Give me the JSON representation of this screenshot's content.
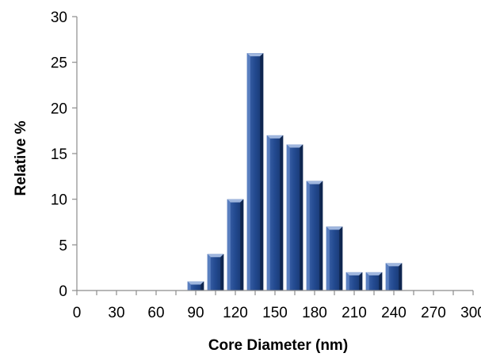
{
  "chart_data": {
    "type": "bar",
    "title": "",
    "xlabel": "Core Diameter (nm)",
    "ylabel": "Relative %",
    "xlim": [
      0,
      300
    ],
    "ylim": [
      0,
      30
    ],
    "x_ticks": [
      "0",
      "30",
      "60",
      "90",
      "120",
      "150",
      "180",
      "210",
      "240",
      "270",
      "300"
    ],
    "y_ticks": [
      "0",
      "5",
      "10",
      "15",
      "20",
      "25",
      "30"
    ],
    "bin_width": 15,
    "grid": false,
    "legend": "none",
    "bar_color": "#1f3f7a",
    "bars": [
      {
        "x": 90,
        "value": 1
      },
      {
        "x": 105,
        "value": 4
      },
      {
        "x": 120,
        "value": 10
      },
      {
        "x": 135,
        "value": 26
      },
      {
        "x": 150,
        "value": 17
      },
      {
        "x": 165,
        "value": 16
      },
      {
        "x": 180,
        "value": 12
      },
      {
        "x": 195,
        "value": 7
      },
      {
        "x": 210,
        "value": 2
      },
      {
        "x": 225,
        "value": 2
      },
      {
        "x": 240,
        "value": 3
      }
    ]
  }
}
